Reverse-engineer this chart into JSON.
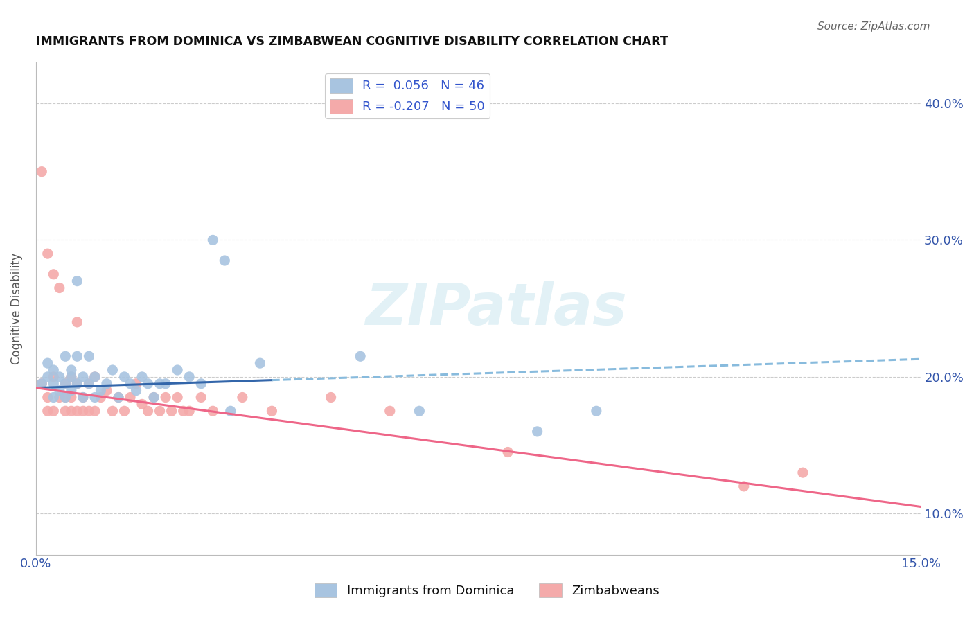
{
  "title": "IMMIGRANTS FROM DOMINICA VS ZIMBABWEAN COGNITIVE DISABILITY CORRELATION CHART",
  "source": "Source: ZipAtlas.com",
  "ylabel": "Cognitive Disability",
  "watermark": "ZIPatlas",
  "xlim": [
    0.0,
    0.15
  ],
  "ylim": [
    0.07,
    0.43
  ],
  "xticks": [
    0.0,
    0.015,
    0.03,
    0.045,
    0.06,
    0.075,
    0.09,
    0.105,
    0.12,
    0.135,
    0.15
  ],
  "yticks": [
    0.1,
    0.2,
    0.3,
    0.4
  ],
  "blue_R": 0.056,
  "blue_N": 46,
  "pink_R": -0.207,
  "pink_N": 50,
  "blue_color": "#A8C4E0",
  "pink_color": "#F4AAAA",
  "blue_line_color_solid": "#3366AA",
  "blue_line_color_dashed": "#88BBDD",
  "pink_line_color": "#EE6688",
  "legend_label_blue": "Immigrants from Dominica",
  "legend_label_pink": "Zimbabweans",
  "background_color": "#FFFFFF",
  "grid_color": "#CCCCCC",
  "title_color": "#111111",
  "axis_label_color": "#555555",
  "blue_scatter_x": [
    0.001,
    0.002,
    0.002,
    0.003,
    0.003,
    0.003,
    0.004,
    0.004,
    0.005,
    0.005,
    0.005,
    0.006,
    0.006,
    0.006,
    0.007,
    0.007,
    0.007,
    0.008,
    0.008,
    0.009,
    0.009,
    0.01,
    0.01,
    0.011,
    0.012,
    0.013,
    0.014,
    0.015,
    0.016,
    0.017,
    0.018,
    0.019,
    0.02,
    0.021,
    0.022,
    0.024,
    0.026,
    0.028,
    0.03,
    0.032,
    0.033,
    0.038,
    0.055,
    0.065,
    0.085,
    0.095
  ],
  "blue_scatter_y": [
    0.195,
    0.2,
    0.21,
    0.185,
    0.195,
    0.205,
    0.19,
    0.2,
    0.185,
    0.195,
    0.215,
    0.2,
    0.19,
    0.205,
    0.195,
    0.215,
    0.27,
    0.185,
    0.2,
    0.195,
    0.215,
    0.185,
    0.2,
    0.19,
    0.195,
    0.205,
    0.185,
    0.2,
    0.195,
    0.19,
    0.2,
    0.195,
    0.185,
    0.195,
    0.195,
    0.205,
    0.2,
    0.195,
    0.3,
    0.285,
    0.175,
    0.21,
    0.215,
    0.175,
    0.16,
    0.175
  ],
  "pink_scatter_x": [
    0.001,
    0.001,
    0.002,
    0.002,
    0.002,
    0.003,
    0.003,
    0.003,
    0.004,
    0.004,
    0.005,
    0.005,
    0.005,
    0.006,
    0.006,
    0.006,
    0.007,
    0.007,
    0.007,
    0.008,
    0.008,
    0.009,
    0.009,
    0.01,
    0.01,
    0.011,
    0.012,
    0.013,
    0.014,
    0.015,
    0.016,
    0.017,
    0.018,
    0.019,
    0.02,
    0.021,
    0.022,
    0.023,
    0.024,
    0.025,
    0.026,
    0.028,
    0.03,
    0.035,
    0.04,
    0.05,
    0.06,
    0.08,
    0.12,
    0.13
  ],
  "pink_scatter_y": [
    0.35,
    0.195,
    0.29,
    0.175,
    0.185,
    0.275,
    0.2,
    0.175,
    0.265,
    0.185,
    0.185,
    0.195,
    0.175,
    0.2,
    0.185,
    0.175,
    0.24,
    0.195,
    0.175,
    0.185,
    0.175,
    0.195,
    0.175,
    0.2,
    0.175,
    0.185,
    0.19,
    0.175,
    0.185,
    0.175,
    0.185,
    0.195,
    0.18,
    0.175,
    0.185,
    0.175,
    0.185,
    0.175,
    0.185,
    0.175,
    0.175,
    0.185,
    0.175,
    0.185,
    0.175,
    0.185,
    0.175,
    0.145,
    0.12,
    0.13
  ],
  "blue_line_y0": 0.192,
  "blue_line_y1": 0.213,
  "blue_line_solid_x1": 0.04,
  "pink_line_y0": 0.192,
  "pink_line_y1": 0.105
}
